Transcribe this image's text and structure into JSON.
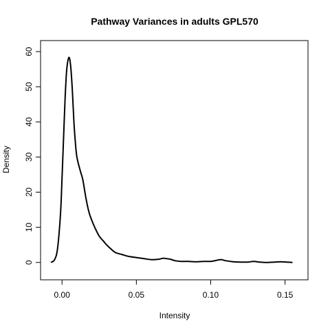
{
  "chart_data": {
    "type": "line",
    "title": "Pathway Variances in adults GPL570",
    "xlabel": "Intensity",
    "ylabel": "Density",
    "xlim": [
      -0.0075,
      0.1585
    ],
    "ylim": [
      -2.4,
      60.6
    ],
    "x_ticks": [
      0.0,
      0.05,
      0.1,
      0.15
    ],
    "x_tick_labels": [
      "0.00",
      "0.05",
      "0.10",
      "0.15"
    ],
    "y_ticks": [
      0,
      10,
      20,
      30,
      40,
      50,
      60
    ],
    "y_tick_labels": [
      "0",
      "10",
      "20",
      "30",
      "40",
      "50",
      "60"
    ],
    "grid": false,
    "legend": "none",
    "color": "#000000",
    "series": [
      {
        "x": [
          -0.0075,
          -0.005,
          -0.003,
          -0.001,
          0.0,
          0.001,
          0.002,
          0.003,
          0.004,
          0.005,
          0.006,
          0.007,
          0.008,
          0.009,
          0.01,
          0.012,
          0.014,
          0.016,
          0.018,
          0.02,
          0.022,
          0.025,
          0.028,
          0.03,
          0.033,
          0.036,
          0.04,
          0.045,
          0.05,
          0.055,
          0.06,
          0.065,
          0.068,
          0.07,
          0.073,
          0.076,
          0.08,
          0.085,
          0.09,
          0.095,
          0.1,
          0.104,
          0.107,
          0.11,
          0.115,
          0.12,
          0.125,
          0.129,
          0.133,
          0.138,
          0.143,
          0.147,
          0.151,
          0.155
        ],
        "y": [
          0.0,
          0.8,
          4.0,
          14.0,
          24.0,
          35.0,
          46.0,
          54.0,
          57.5,
          58.2,
          55.0,
          48.5,
          40.0,
          34.0,
          30.0,
          26.5,
          23.5,
          18.5,
          14.5,
          12.0,
          10.0,
          7.5,
          6.0,
          5.0,
          3.8,
          2.8,
          2.3,
          1.7,
          1.4,
          1.1,
          0.8,
          0.9,
          1.2,
          1.1,
          0.9,
          0.5,
          0.3,
          0.3,
          0.2,
          0.3,
          0.3,
          0.6,
          0.8,
          0.5,
          0.2,
          0.1,
          0.1,
          0.3,
          0.1,
          0.0,
          0.1,
          0.2,
          0.1,
          0.0
        ]
      }
    ]
  }
}
